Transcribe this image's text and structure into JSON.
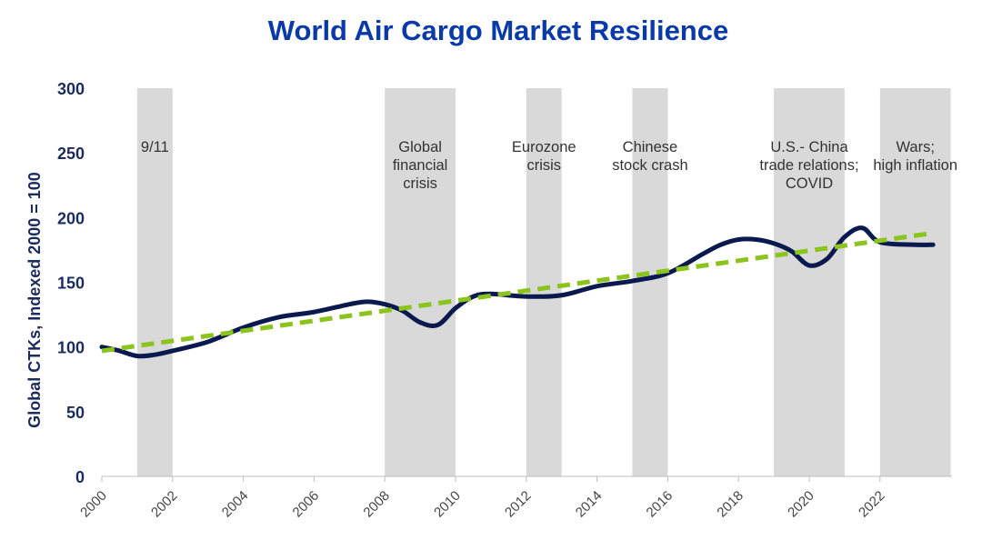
{
  "chart_data": {
    "type": "line",
    "title": "World Air Cargo Market Resilience",
    "ylabel": "Global CTKs, Indexed 2000 = 100",
    "xlabel": "",
    "ylim": [
      0,
      300
    ],
    "yticks": [
      "0",
      "50",
      "100",
      "150",
      "200",
      "250",
      "300"
    ],
    "xticks": [
      "2000",
      "2002",
      "2004",
      "2006",
      "2008",
      "2010",
      "2012",
      "2014",
      "2016",
      "2018",
      "2020",
      "2022"
    ],
    "grid": false,
    "legend": "none",
    "series": [
      {
        "name": "",
        "color": "#0a1a4f",
        "x": [
          2000,
          2000.5,
          2001,
          2001.5,
          2002,
          2003,
          2004,
          2005,
          2006,
          2007,
          2007.5,
          2008,
          2008.5,
          2009,
          2009.5,
          2010,
          2010.5,
          2011,
          2012,
          2013,
          2014,
          2015,
          2016,
          2017,
          2017.5,
          2018,
          2018.5,
          2019,
          2019.5,
          2020,
          2020.5,
          2021,
          2021.5,
          2022,
          2023,
          2023.5
        ],
        "values": [
          100,
          97,
          93,
          94,
          97,
          104,
          115,
          123,
          127,
          133,
          135,
          133,
          128,
          119,
          117,
          130,
          139,
          141,
          139,
          140,
          147,
          151,
          157,
          172,
          179,
          183,
          183,
          180,
          174,
          163,
          168,
          185,
          192,
          181,
          179,
          179
        ]
      },
      {
        "name": "",
        "color": "#8ac41c",
        "dashed": true,
        "x": [
          2000,
          2023.5
        ],
        "values": [
          97,
          188
        ]
      }
    ],
    "shaded_periods": [
      {
        "start": 2001,
        "end": 2002,
        "label_lines": [
          "9/11"
        ]
      },
      {
        "start": 2008,
        "end": 2010,
        "label_lines": [
          "Global",
          "financial",
          "crisis"
        ]
      },
      {
        "start": 2012,
        "end": 2013,
        "label_lines": [
          "Eurozone",
          "crisis"
        ]
      },
      {
        "start": 2015,
        "end": 2016,
        "label_lines": [
          "Chinese",
          "stock crash"
        ]
      },
      {
        "start": 2019,
        "end": 2021,
        "label_lines": [
          "U.S.- China",
          "trade relations;",
          "COVID"
        ]
      },
      {
        "start": 2022,
        "end": 2024,
        "label_lines": [
          "Wars;",
          "high inflation"
        ]
      }
    ],
    "colors": {
      "shade": "#d9d9d9",
      "axis": "#bfbfbf"
    }
  }
}
